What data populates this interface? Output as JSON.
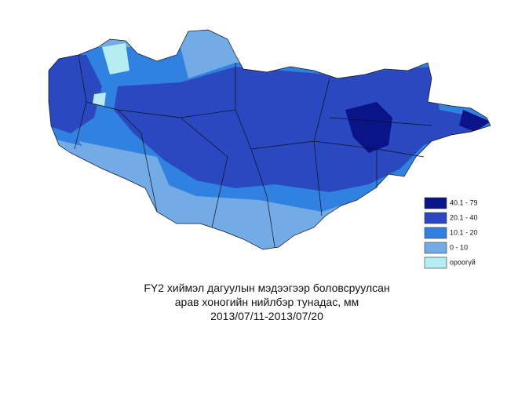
{
  "title": {
    "lines": [
      "FY2 хиймэл дагуулын мэдээгээр боловсруулсан",
      "арав хоногийн нийлбэр тунадас, мм",
      "2013/07/11-2013/07/20"
    ]
  },
  "legend": [
    {
      "label": "40.1 - 79",
      "color": "#0a1488"
    },
    {
      "label": "20.1 - 40",
      "color": "#2a48c0"
    },
    {
      "label": "10.1 - 20",
      "color": "#3181e0"
    },
    {
      "label": "0 - 10",
      "color": "#72abe6"
    },
    {
      "label": "ороогүй",
      "color": "#b5edf3"
    }
  ]
}
